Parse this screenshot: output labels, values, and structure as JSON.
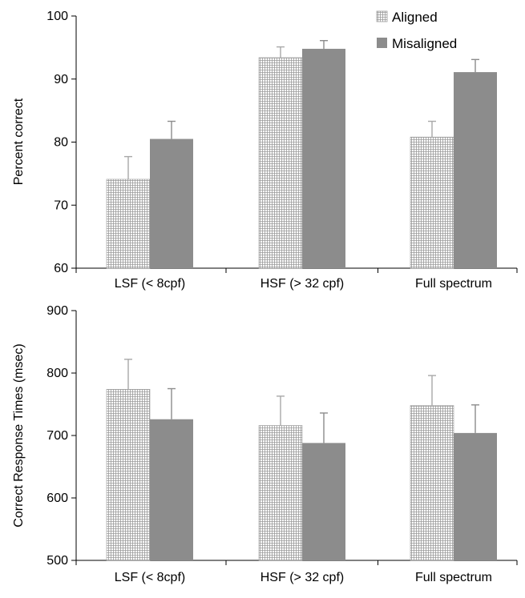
{
  "chart_data": [
    {
      "type": "bar",
      "ylabel": "Percent correct",
      "ylim": [
        60,
        100
      ],
      "yticks": [
        60,
        70,
        80,
        90,
        100
      ],
      "categories": [
        "LSF (< 8cpf)",
        "HSF (> 32 cpf)",
        "Full spectrum"
      ],
      "series": [
        {
          "name": "Aligned",
          "values": [
            74.1,
            93.4,
            80.8
          ],
          "errors": [
            3.6,
            1.7,
            2.5
          ]
        },
        {
          "name": "Misaligned",
          "values": [
            80.5,
            94.8,
            91.1
          ],
          "errors": [
            2.8,
            1.3,
            2.0
          ]
        }
      ],
      "legend_position": "top-right",
      "grid": false
    },
    {
      "type": "bar",
      "ylabel": "Correct Response Times (msec)",
      "ylim": [
        500,
        900
      ],
      "yticks": [
        500,
        600,
        700,
        800,
        900
      ],
      "categories": [
        "LSF (< 8cpf)",
        "HSF (> 32 cpf)",
        "Full spectrum"
      ],
      "series": [
        {
          "name": "Aligned",
          "values": [
            774,
            716,
            748
          ],
          "errors": [
            48,
            47,
            48
          ]
        },
        {
          "name": "Misaligned",
          "values": [
            726,
            688,
            704
          ],
          "errors": [
            49,
            48,
            45
          ]
        }
      ],
      "grid": false
    }
  ],
  "colors": {
    "aligned_fill": "#ffffff",
    "aligned_hatch": "#9a9a9a",
    "misaligned_fill": "#8c8c8c",
    "axis": "#000000"
  }
}
